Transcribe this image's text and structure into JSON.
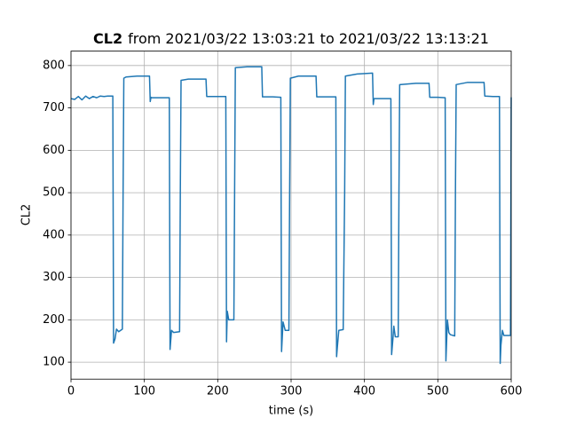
{
  "chart_data": {
    "type": "line",
    "title_bold": "CL2",
    "title": "from 2021/03/22 13:03:21 to 2021/03/22 13:13:21",
    "x_label": "time (s)",
    "y_label": "CL2",
    "xlim": [
      0,
      600
    ],
    "ylim": [
      60,
      834
    ],
    "xticks": [
      0,
      100,
      200,
      300,
      400,
      500,
      600
    ],
    "yticks": [
      100,
      200,
      300,
      400,
      500,
      600,
      700,
      800
    ],
    "grid": true,
    "series": [
      {
        "color": "#1f77b4",
        "x": [
          0,
          5,
          10,
          15,
          20,
          25,
          30,
          35,
          40,
          45,
          50,
          55,
          57,
          58,
          60,
          62,
          65,
          70,
          71,
          72,
          75,
          90,
          107,
          108,
          109,
          110,
          120,
          134,
          135,
          137,
          140,
          148,
          149,
          150,
          160,
          184,
          185,
          200,
          211,
          212,
          213,
          215,
          222,
          223,
          224,
          240,
          260,
          261,
          275,
          286,
          287,
          288,
          289,
          292,
          297,
          298,
          299,
          310,
          334,
          335,
          350,
          361,
          362,
          363,
          365,
          371,
          373,
          374,
          390,
          411,
          412,
          413,
          420,
          436,
          437,
          439,
          440,
          442,
          446,
          447,
          448,
          470,
          488,
          489,
          500,
          510,
          511,
          512,
          513,
          515,
          517,
          523,
          524,
          525,
          540,
          563,
          564,
          575,
          584,
          585,
          586,
          588,
          590,
          599,
          600
        ],
        "values": [
          722,
          720,
          727,
          719,
          728,
          722,
          727,
          724,
          728,
          727,
          728,
          728,
          728,
          145,
          155,
          178,
          172,
          178,
          500,
          770,
          773,
          775,
          775,
          715,
          725,
          724,
          724,
          724,
          130,
          175,
          170,
          172,
          500,
          765,
          768,
          768,
          727,
          727,
          727,
          148,
          220,
          200,
          200,
          500,
          795,
          797,
          797,
          726,
          726,
          725,
          125,
          160,
          195,
          175,
          175,
          500,
          770,
          775,
          775,
          726,
          726,
          726,
          113,
          135,
          175,
          177,
          500,
          775,
          780,
          782,
          708,
          722,
          722,
          722,
          118,
          160,
          185,
          160,
          160,
          500,
          755,
          758,
          758,
          725,
          725,
          724,
          103,
          150,
          200,
          170,
          165,
          162,
          500,
          755,
          760,
          760,
          728,
          727,
          727,
          97,
          140,
          175,
          163,
          163,
          725
        ]
      }
    ]
  }
}
